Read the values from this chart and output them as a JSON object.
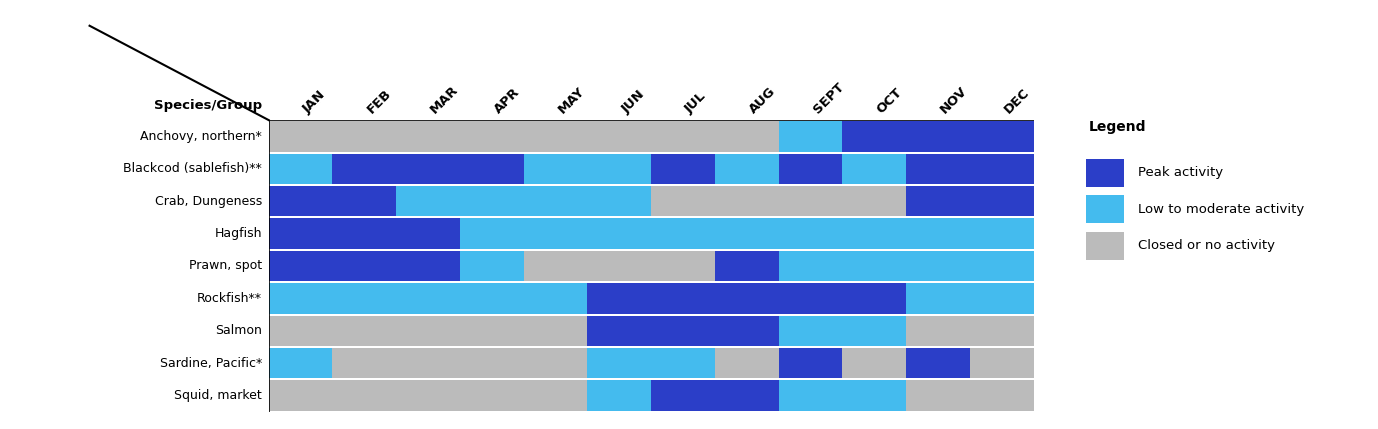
{
  "months": [
    "JAN",
    "FEB",
    "MAR",
    "APR",
    "MAY",
    "JUN",
    "JUL",
    "AUG",
    "SEPT",
    "OCT",
    "NOV",
    "DEC"
  ],
  "species": [
    "Anchovy, northern*",
    "Blackcod (sablefish)**",
    "Crab, Dungeness",
    "Hagfish",
    "Prawn, spot",
    "Rockfish**",
    "Salmon",
    "Sardine, Pacific*",
    "Squid, market"
  ],
  "grid": [
    [
      "G",
      "G",
      "G",
      "G",
      "G",
      "G",
      "G",
      "G",
      "L",
      "D",
      "D",
      "D"
    ],
    [
      "L",
      "D",
      "D",
      "D",
      "L",
      "L",
      "D",
      "L",
      "D",
      "L",
      "D",
      "D"
    ],
    [
      "D",
      "D",
      "L",
      "L",
      "L",
      "L",
      "G",
      "G",
      "G",
      "G",
      "D",
      "D"
    ],
    [
      "D",
      "D",
      "D",
      "L",
      "L",
      "L",
      "L",
      "L",
      "L",
      "L",
      "L",
      "L"
    ],
    [
      "D",
      "D",
      "D",
      "L",
      "G",
      "G",
      "G",
      "D",
      "L",
      "L",
      "L",
      "L"
    ],
    [
      "L",
      "L",
      "L",
      "L",
      "L",
      "D",
      "D",
      "D",
      "D",
      "D",
      "L",
      "L"
    ],
    [
      "G",
      "G",
      "G",
      "G",
      "G",
      "D",
      "D",
      "D",
      "L",
      "L",
      "G",
      "G"
    ],
    [
      "L",
      "G",
      "G",
      "G",
      "G",
      "L",
      "L",
      "G",
      "D",
      "G",
      "D",
      "G"
    ],
    [
      "G",
      "G",
      "G",
      "G",
      "G",
      "L",
      "D",
      "D",
      "L",
      "L",
      "G",
      "G"
    ]
  ],
  "peak_color": "#2B3EC8",
  "low_color": "#44BBEE",
  "closed_color": "#BBBBBB",
  "legend_title": "Legend",
  "legend_items": [
    "Peak activity",
    "Low to moderate activity",
    "Closed or no activity"
  ],
  "header_label": "Species/Group",
  "fig_width": 13.78,
  "fig_height": 4.29
}
